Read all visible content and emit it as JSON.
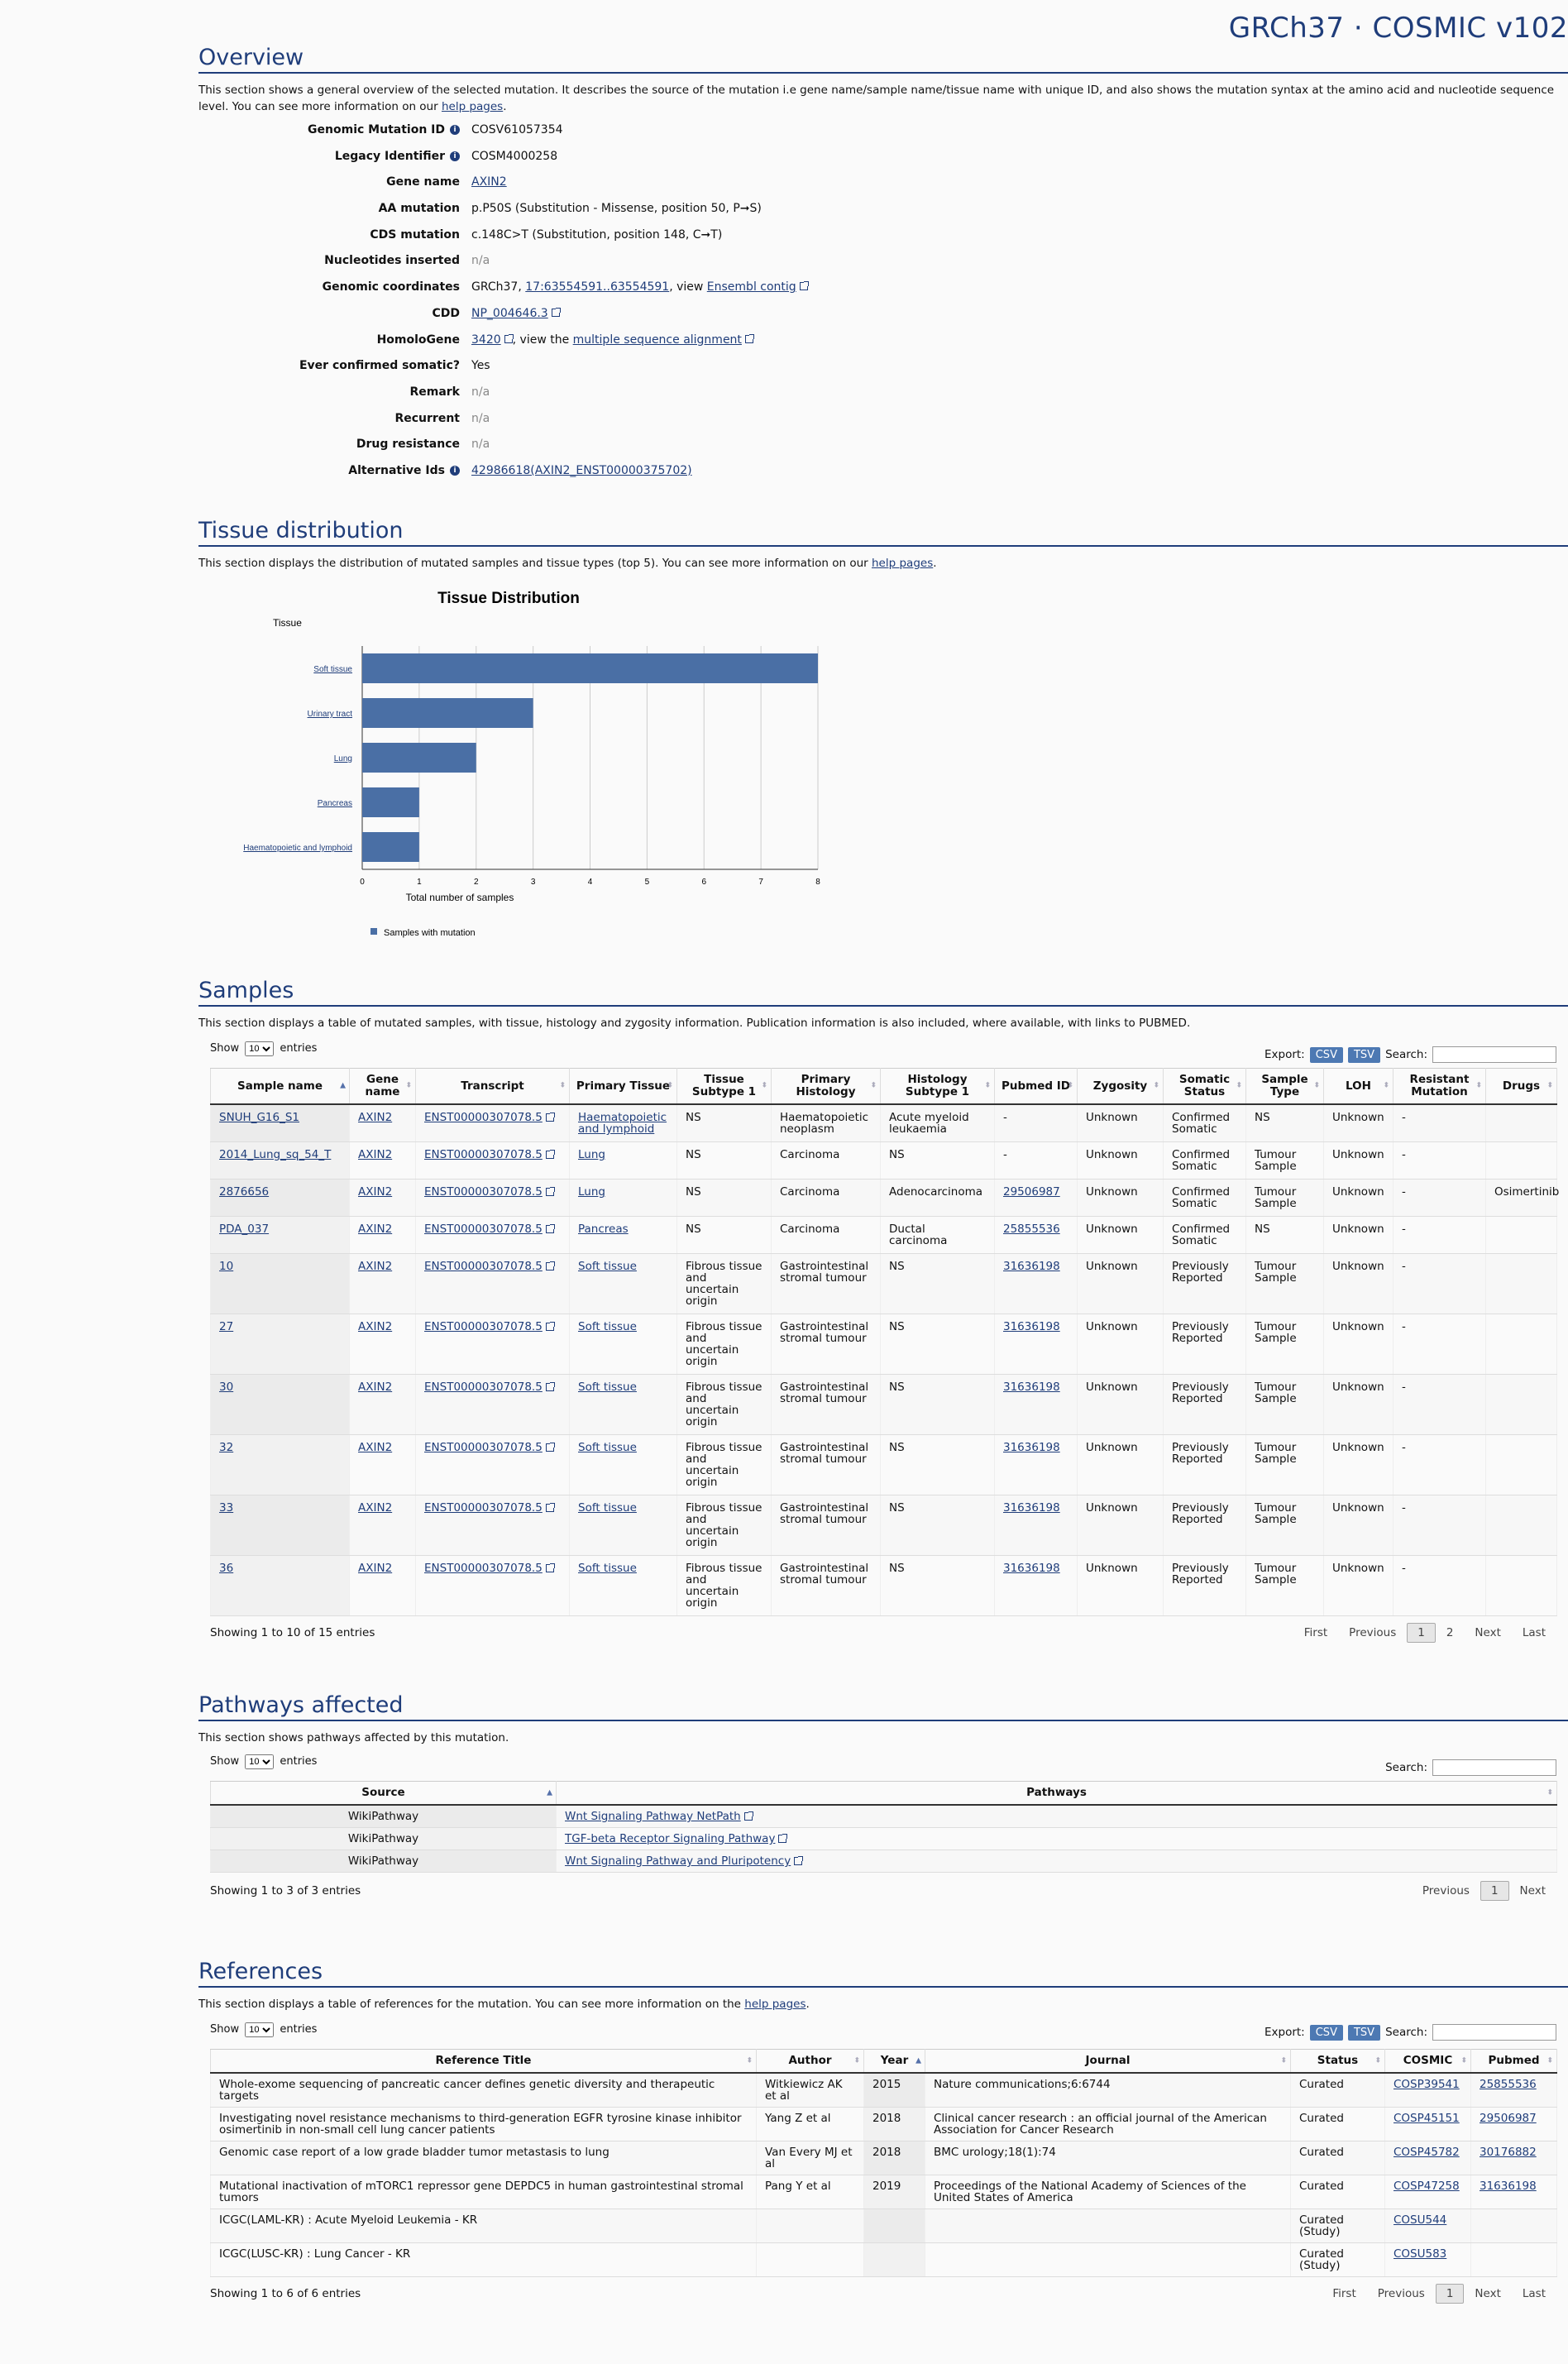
{
  "brand": "GRCh37 · COSMIC v102",
  "overview": {
    "title": "Overview",
    "intro_pre": "This section shows a general overview of the selected mutation. It describes the source of the mutation i.e gene name/sample name/tissue name with unique ID, and also shows the mutation syntax at the amino acid and nucleotide sequence level. You can see more information on our ",
    "intro_link": "help pages",
    "intro_post": ".",
    "rows": [
      {
        "label": "Genomic Mutation ID",
        "value": "COSV61057354"
      },
      {
        "label": "Legacy Identifier",
        "value": "COSM4000258"
      },
      {
        "label": "Gene name",
        "value": "AXIN2"
      },
      {
        "label": "AA mutation",
        "value": "p.P50S (Substitution - Missense, position 50, P➞S)"
      },
      {
        "label": "CDS mutation",
        "value": "c.148C>T (Substitution, position 148, C➞T)"
      },
      {
        "label": "Nucleotides inserted",
        "value": "n/a"
      },
      {
        "label": "Genomic coordinates",
        "prefix": "GRCh37, ",
        "link1": "17:63554591..63554591",
        "mid": ", view ",
        "link2": "Ensembl contig"
      },
      {
        "label": "CDD",
        "value": "NP_004646.3"
      },
      {
        "label": "HomoloGene",
        "link1": "3420",
        "mid": ", view the ",
        "link2": "multiple sequence alignment"
      },
      {
        "label": "Ever confirmed somatic?",
        "value": "Yes"
      },
      {
        "label": "Remark",
        "value": "n/a"
      },
      {
        "label": "Recurrent",
        "value": "n/a"
      },
      {
        "label": "Drug resistance",
        "value": "n/a"
      },
      {
        "label": "Alternative Ids",
        "value": "42986618(AXIN2_ENST00000375702)"
      }
    ]
  },
  "tissue": {
    "title": "Tissue distribution",
    "intro_pre": "This section displays the distribution of mutated samples and tissue types (top 5). You can see more information on our ",
    "intro_link": "help pages",
    "intro_post": "."
  },
  "chart_data": {
    "type": "bar",
    "orientation": "horizontal",
    "title": "Tissue Distribution",
    "ylabel": "Tissue",
    "xlabel": "Total number of samples",
    "categories": [
      "Soft tissue",
      "Urinary tract",
      "Lung",
      "Pancreas",
      "Haematopoietic and lymphoid"
    ],
    "series": [
      {
        "name": "Samples with mutation",
        "values": [
          8,
          3,
          2,
          1,
          1
        ]
      }
    ],
    "xlim": [
      0,
      8
    ],
    "xticks": [
      0,
      1,
      2,
      3,
      4,
      5,
      6,
      7,
      8
    ],
    "grid": true,
    "legend": "bottom-left",
    "color": "#4a6fa5"
  },
  "samples": {
    "title": "Samples",
    "intro": "This section displays a table of mutated samples, with tissue, histology and zygosity information. Publication information is also included, where available, with links to PUBMED.",
    "show_label": "Show",
    "entries_value": "10",
    "entries_label": "entries",
    "export_label": "Export:",
    "csv": "CSV",
    "tsv": "TSV",
    "search_label": "Search:",
    "columns": [
      "Sample name",
      "Gene name",
      "Transcript",
      "Primary Tissue",
      "Tissue Subtype 1",
      "Primary Histology",
      "Histology Subtype 1",
      "Pubmed ID",
      "Zygosity",
      "Somatic Status",
      "Sample Type",
      "LOH",
      "Resistant Mutation",
      "Drugs"
    ],
    "rows": [
      [
        "SNUH_G16_S1",
        "AXIN2",
        "ENST00000307078.5",
        "Haematopoietic and lymphoid",
        "NS",
        "Haematopoietic neoplasm",
        "Acute myeloid leukaemia",
        "-",
        "Unknown",
        "Confirmed Somatic",
        "NS",
        "Unknown",
        "-",
        ""
      ],
      [
        "2014_Lung_sq_54_T",
        "AXIN2",
        "ENST00000307078.5",
        "Lung",
        "NS",
        "Carcinoma",
        "NS",
        "-",
        "Unknown",
        "Confirmed Somatic",
        "Tumour Sample",
        "Unknown",
        "-",
        ""
      ],
      [
        "2876656",
        "AXIN2",
        "ENST00000307078.5",
        "Lung",
        "NS",
        "Carcinoma",
        "Adenocarcinoma",
        "29506987",
        "Unknown",
        "Confirmed Somatic",
        "Tumour Sample",
        "Unknown",
        "-",
        "Osimertinib"
      ],
      [
        "PDA_037",
        "AXIN2",
        "ENST00000307078.5",
        "Pancreas",
        "NS",
        "Carcinoma",
        "Ductal carcinoma",
        "25855536",
        "Unknown",
        "Confirmed Somatic",
        "NS",
        "Unknown",
        "-",
        ""
      ],
      [
        "10",
        "AXIN2",
        "ENST00000307078.5",
        "Soft tissue",
        "Fibrous tissue and uncertain origin",
        "Gastrointestinal stromal tumour",
        "NS",
        "31636198",
        "Unknown",
        "Previously Reported",
        "Tumour Sample",
        "Unknown",
        "-",
        ""
      ],
      [
        "27",
        "AXIN2",
        "ENST00000307078.5",
        "Soft tissue",
        "Fibrous tissue and uncertain origin",
        "Gastrointestinal stromal tumour",
        "NS",
        "31636198",
        "Unknown",
        "Previously Reported",
        "Tumour Sample",
        "Unknown",
        "-",
        ""
      ],
      [
        "30",
        "AXIN2",
        "ENST00000307078.5",
        "Soft tissue",
        "Fibrous tissue and uncertain origin",
        "Gastrointestinal stromal tumour",
        "NS",
        "31636198",
        "Unknown",
        "Previously Reported",
        "Tumour Sample",
        "Unknown",
        "-",
        ""
      ],
      [
        "32",
        "AXIN2",
        "ENST00000307078.5",
        "Soft tissue",
        "Fibrous tissue and uncertain origin",
        "Gastrointestinal stromal tumour",
        "NS",
        "31636198",
        "Unknown",
        "Previously Reported",
        "Tumour Sample",
        "Unknown",
        "-",
        ""
      ],
      [
        "33",
        "AXIN2",
        "ENST00000307078.5",
        "Soft tissue",
        "Fibrous tissue and uncertain origin",
        "Gastrointestinal stromal tumour",
        "NS",
        "31636198",
        "Unknown",
        "Previously Reported",
        "Tumour Sample",
        "Unknown",
        "-",
        ""
      ],
      [
        "36",
        "AXIN2",
        "ENST00000307078.5",
        "Soft tissue",
        "Fibrous tissue and uncertain origin",
        "Gastrointestinal stromal tumour",
        "NS",
        "31636198",
        "Unknown",
        "Previously Reported",
        "Tumour Sample",
        "Unknown",
        "-",
        ""
      ]
    ],
    "footer": "Showing 1 to 10 of 15 entries",
    "pager": [
      "First",
      "Previous",
      "1",
      "2",
      "Next",
      "Last"
    ]
  },
  "pathways": {
    "title": "Pathways affected",
    "intro": "This section shows pathways affected by this mutation.",
    "show_label": "Show",
    "entries_value": "10",
    "entries_label": "entries",
    "search_label": "Search:",
    "columns": [
      "Source",
      "Pathways"
    ],
    "rows": [
      [
        "WikiPathway",
        "Wnt Signaling Pathway NetPath"
      ],
      [
        "WikiPathway",
        "TGF-beta Receptor Signaling Pathway"
      ],
      [
        "WikiPathway",
        "Wnt Signaling Pathway and Pluripotency"
      ]
    ],
    "footer": "Showing 1 to 3 of 3 entries",
    "pager": [
      "Previous",
      "1",
      "Next"
    ]
  },
  "references": {
    "title": "References",
    "intro_pre": "This section displays a table of references for the mutation. You can see more information on the ",
    "intro_link": "help pages",
    "intro_post": ".",
    "show_label": "Show",
    "entries_value": "10",
    "entries_label": "entries",
    "export_label": "Export:",
    "csv": "CSV",
    "tsv": "TSV",
    "search_label": "Search:",
    "columns": [
      "Reference Title",
      "Author",
      "Year",
      "Journal",
      "Status",
      "COSMIC",
      "Pubmed"
    ],
    "rows": [
      [
        "Whole-exome sequencing of pancreatic cancer defines genetic diversity and therapeutic targets",
        "Witkiewicz AK et al",
        "2015",
        "Nature communications;6:6744",
        "Curated",
        "COSP39541",
        "25855536"
      ],
      [
        "Investigating novel resistance mechanisms to third-generation EGFR tyrosine kinase inhibitor osimertinib in non-small cell lung cancer patients",
        "Yang Z et al",
        "2018",
        "Clinical cancer research : an official journal of the American Association for Cancer Research",
        "Curated",
        "COSP45151",
        "29506987"
      ],
      [
        "Genomic case report of a low grade bladder tumor metastasis to lung",
        "Van Every MJ et al",
        "2018",
        "BMC urology;18(1):74",
        "Curated",
        "COSP45782",
        "30176882"
      ],
      [
        "Mutational inactivation of mTORC1 repressor gene DEPDC5 in human gastrointestinal stromal tumors",
        "Pang Y et al",
        "2019",
        "Proceedings of the National Academy of Sciences of the United States of America",
        "Curated",
        "COSP47258",
        "31636198"
      ],
      [
        "ICGC(LAML-KR) : Acute Myeloid Leukemia - KR",
        "",
        "",
        "",
        "Curated (Study)",
        "COSU544",
        ""
      ],
      [
        "ICGC(LUSC-KR) : Lung Cancer - KR",
        "",
        "",
        "",
        "Curated (Study)",
        "COSU583",
        ""
      ]
    ],
    "footer": "Showing 1 to 6 of 6 entries",
    "pager": [
      "First",
      "Previous",
      "1",
      "Next",
      "Last"
    ]
  }
}
